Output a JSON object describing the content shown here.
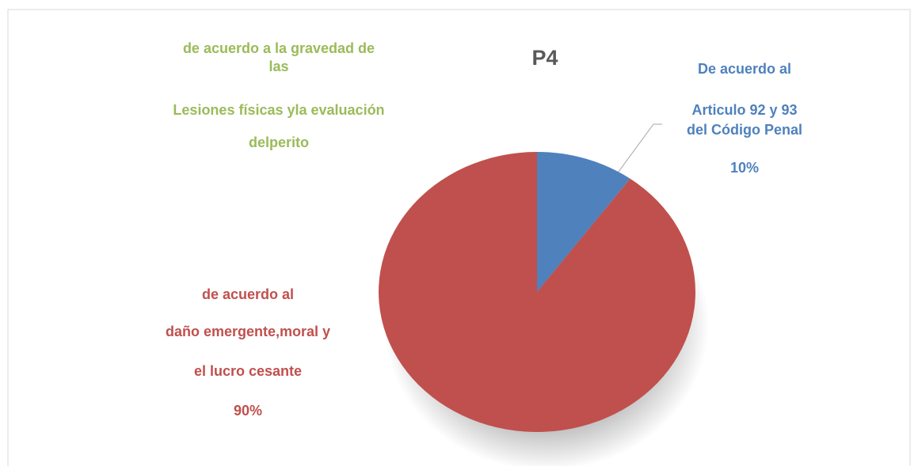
{
  "chart_data": {
    "type": "pie",
    "title": "P4",
    "categories": [
      [
        "De acuerdo al",
        "Articulo 92 y 93",
        "del Código Penal"
      ],
      [
        "de acuerdo al",
        "daño emergente,moral y",
        "el lucro cesante"
      ]
    ],
    "values": [
      10,
      90
    ],
    "value_labels": [
      "10%",
      "90%"
    ],
    "colors": [
      "#4f81bd",
      "#c0504d"
    ],
    "annotation": {
      "lines": [
        "de acuerdo a la gravedad de",
        "las",
        "Lesiones físicas yla evaluación",
        "delperito"
      ],
      "color": "#9bbb59"
    }
  }
}
